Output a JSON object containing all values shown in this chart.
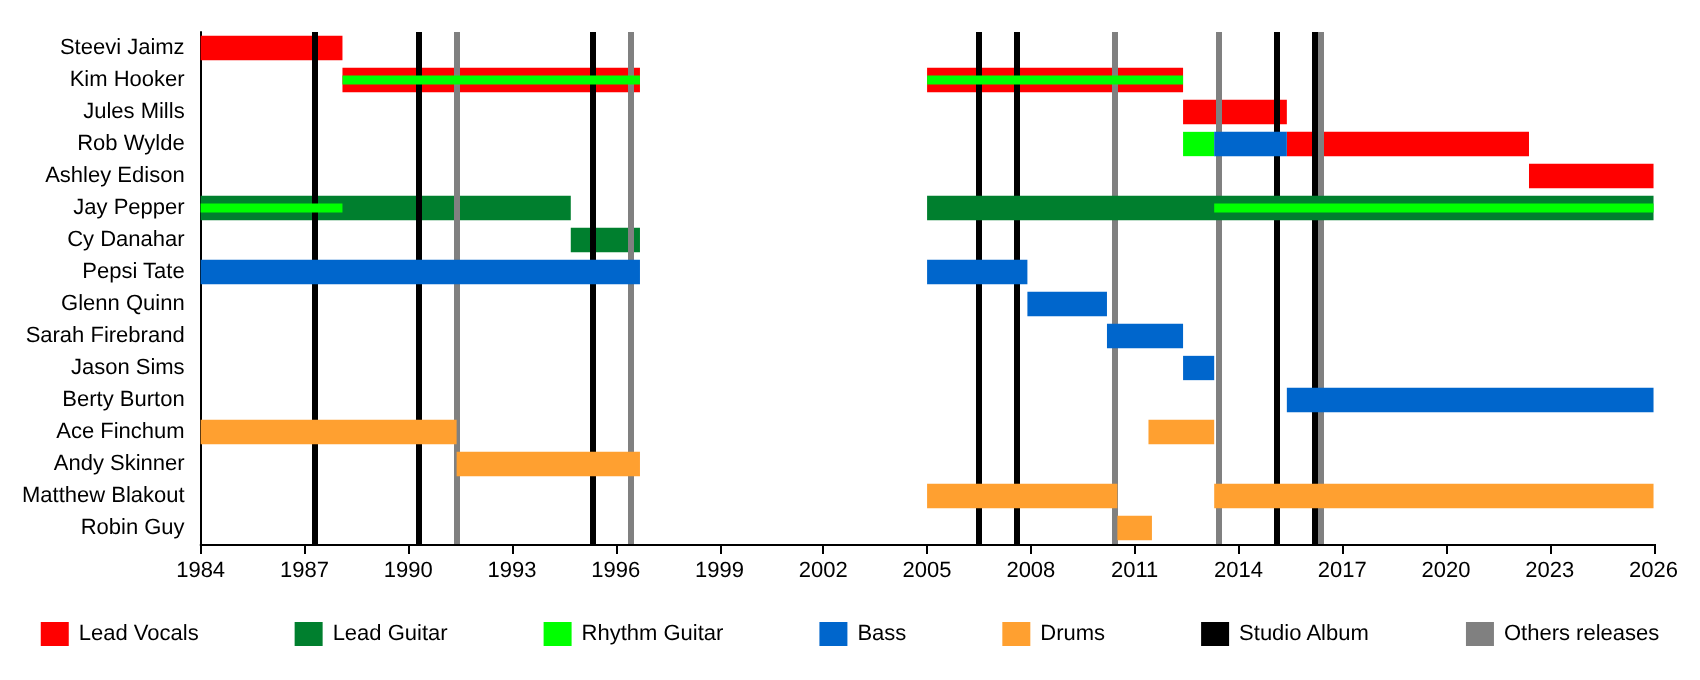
{
  "chart_data": {
    "type": "bar",
    "orientation": "horizontal",
    "categories": [
      "Steevi Jaimz",
      "Kim Hooker",
      "Jules Mills",
      "Rob Wylde",
      "Ashley Edison",
      "Jay Pepper",
      "Cy Danahar",
      "Pepsi Tate",
      "Glenn Quinn",
      "Sarah Firebrand",
      "Jason Sims",
      "Berty Burton",
      "Ace Finchum",
      "Andy Skinner",
      "Matthew Blakout",
      "Robin Guy"
    ],
    "series": [
      {
        "name": "Lead Vocals",
        "color": "#ff0000",
        "base": [
          1984,
          1988.1,
          2012.4,
          2015.4,
          2022.4,
          null,
          null,
          null,
          null,
          null,
          null,
          null,
          null,
          null,
          null,
          null
        ],
        "values": [
          4.1,
          8.6,
          3.0,
          7.0,
          3.6,
          null,
          null,
          null,
          null,
          null,
          null,
          null,
          null,
          null,
          null,
          null
        ]
      },
      {
        "color": "#ff0000",
        "base": [
          null,
          2005,
          null,
          null,
          null,
          null,
          null,
          null,
          null,
          null,
          null,
          null,
          null,
          null,
          null,
          null
        ],
        "values": [
          null,
          7.4,
          null,
          null,
          null,
          null,
          null,
          null,
          null,
          null,
          null,
          null,
          null,
          null,
          null,
          null
        ]
      },
      {
        "name": "Lead Guitar",
        "color": "#007f2e",
        "base": [
          null,
          null,
          null,
          null,
          null,
          1984,
          1994.7,
          null,
          null,
          null,
          null,
          null,
          null,
          null,
          null,
          null
        ],
        "values": [
          null,
          null,
          null,
          null,
          null,
          10.7,
          2.0,
          null,
          null,
          null,
          null,
          null,
          null,
          null,
          null,
          null
        ]
      },
      {
        "color": "#007f2e",
        "base": [
          null,
          null,
          null,
          null,
          null,
          2005,
          null,
          null,
          null,
          null,
          null,
          null,
          null,
          null,
          null,
          null
        ],
        "values": [
          null,
          null,
          null,
          null,
          null,
          21,
          null,
          null,
          null,
          null,
          null,
          null,
          null,
          null,
          null,
          null
        ]
      },
      {
        "name": "Rhythm Guitar",
        "color": "#00ff00",
        "base": [
          null,
          1988.1,
          null,
          2012.4,
          null,
          1984,
          null,
          null,
          null,
          null,
          null,
          null,
          null,
          null,
          null,
          null
        ],
        "values": [
          null,
          8.6,
          null,
          0.9,
          null,
          4.1,
          null,
          null,
          null,
          null,
          null,
          null,
          null,
          null,
          null,
          null
        ]
      },
      {
        "color": "#00ff00",
        "base": [
          null,
          2005,
          null,
          null,
          null,
          2013.3,
          null,
          null,
          null,
          null,
          null,
          null,
          null,
          null,
          null,
          null
        ],
        "values": [
          null,
          7.4,
          null,
          null,
          null,
          12.7,
          null,
          null,
          null,
          null,
          null,
          null,
          null,
          null,
          null,
          null
        ]
      },
      {
        "name": "Bass",
        "color": "#0066cc",
        "base": [
          null,
          null,
          null,
          2013.3,
          null,
          null,
          null,
          1984,
          2007.9,
          2010.2,
          2012.4,
          2015.4,
          null,
          null,
          null,
          null
        ],
        "values": [
          null,
          null,
          null,
          2.1,
          null,
          null,
          null,
          12.7,
          2.3,
          2.2,
          0.9,
          10.6,
          null,
          null,
          null,
          null
        ]
      },
      {
        "color": "#0066cc",
        "base": [
          null,
          null,
          null,
          null,
          null,
          null,
          null,
          2005,
          null,
          null,
          null,
          null,
          null,
          null,
          null,
          null
        ],
        "values": [
          null,
          null,
          null,
          null,
          null,
          null,
          null,
          2.9,
          null,
          null,
          null,
          null,
          null,
          null,
          null,
          null
        ]
      },
      {
        "name": "Drums",
        "color": "#ffa030",
        "base": [
          null,
          null,
          null,
          null,
          null,
          null,
          null,
          null,
          null,
          null,
          null,
          null,
          1984,
          1991.4,
          2005,
          2010.5
        ],
        "values": [
          null,
          null,
          null,
          null,
          null,
          null,
          null,
          null,
          null,
          null,
          null,
          null,
          7.4,
          5.3,
          5.5,
          1.0
        ]
      },
      {
        "color": "#ffa030",
        "base": [
          null,
          null,
          null,
          null,
          null,
          null,
          null,
          null,
          null,
          null,
          null,
          null,
          2011.4,
          null,
          2013.3,
          null
        ],
        "values": [
          null,
          null,
          null,
          null,
          null,
          null,
          null,
          null,
          null,
          null,
          null,
          null,
          1.9,
          null,
          12.7,
          null
        ]
      }
    ],
    "ref_lines": [
      {
        "axis": "x",
        "value": 1987.3,
        "label": "Studio Album",
        "color": "#000000"
      },
      {
        "axis": "x",
        "value": 1990.3,
        "color": "#000000"
      },
      {
        "axis": "x",
        "value": 1995.3,
        "color": "#000000"
      },
      {
        "axis": "x",
        "value": 2006.5,
        "color": "#000000"
      },
      {
        "axis": "x",
        "value": 2007.6,
        "color": "#000000"
      },
      {
        "axis": "x",
        "value": 2015.1,
        "color": "#000000"
      },
      {
        "axis": "x",
        "value": 2016.2,
        "color": "#000000"
      },
      {
        "axis": "x",
        "value": 1991.4,
        "label": "Others releases",
        "color": "#808080"
      },
      {
        "axis": "x",
        "value": 1996.4,
        "color": "#808080"
      },
      {
        "axis": "x",
        "value": 2010.4,
        "color": "#808080"
      },
      {
        "axis": "x",
        "value": 2013.4,
        "color": "#808080"
      },
      {
        "axis": "x",
        "value": 2016.4,
        "color": "#808080"
      }
    ],
    "xlim": [
      1984,
      2026
    ],
    "xticks": [
      1984,
      1987,
      1990,
      1993,
      1996,
      1999,
      2002,
      2005,
      2008,
      2011,
      2014,
      2017,
      2020,
      2023,
      2026
    ],
    "grid": false,
    "legend": "bottom"
  }
}
